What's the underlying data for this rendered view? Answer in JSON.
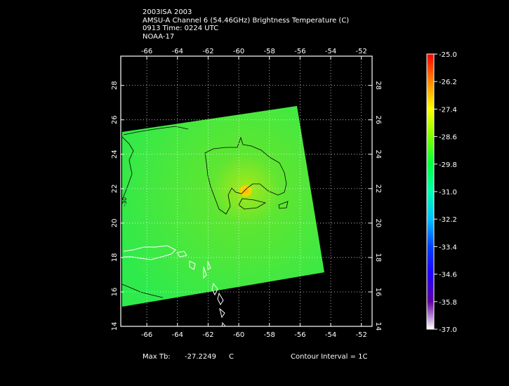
{
  "header": {
    "line1": "2003ISA 2003",
    "line2": "AMSU-A Channel 6 (54.46GHz) Brightness Temperature (C)",
    "line3": "0913 Time: 0224 UTC",
    "line4": "NOAA-17"
  },
  "map": {
    "lon_ticks": [
      "-66",
      "-64",
      "-62",
      "-60",
      "-58",
      "-56",
      "-54",
      "-52"
    ],
    "lat_ticks": [
      "14",
      "16",
      "18",
      "20",
      "22",
      "24",
      "26",
      "28"
    ],
    "lon_range": [
      -67.7,
      -51.3
    ],
    "lat_range": [
      14,
      29.7
    ],
    "contour_label": "-30",
    "colors": {
      "background": "#000000",
      "grid": "#ffffff",
      "coast": "#ffffff",
      "contour": "#000000"
    }
  },
  "colorbar": {
    "labels": [
      "-25.0",
      "-26.2",
      "-27.4",
      "-28.6",
      "-29.8",
      "-31.0",
      "-32.2",
      "-33.4",
      "-34.6",
      "-35.8",
      "-37.0"
    ],
    "stops": [
      "#ff0000",
      "#ff8800",
      "#ffff00",
      "#80ff00",
      "#00ff40",
      "#00ffb0",
      "#00c0ff",
      "#0040ff",
      "#2000ff",
      "#6000a0",
      "#ffffff"
    ]
  },
  "footer": {
    "max_tb_label": "Max Tb:",
    "max_tb_value": "-27.2249",
    "max_tb_unit": "C",
    "contour_interval": "Contour Interval = 1C"
  }
}
